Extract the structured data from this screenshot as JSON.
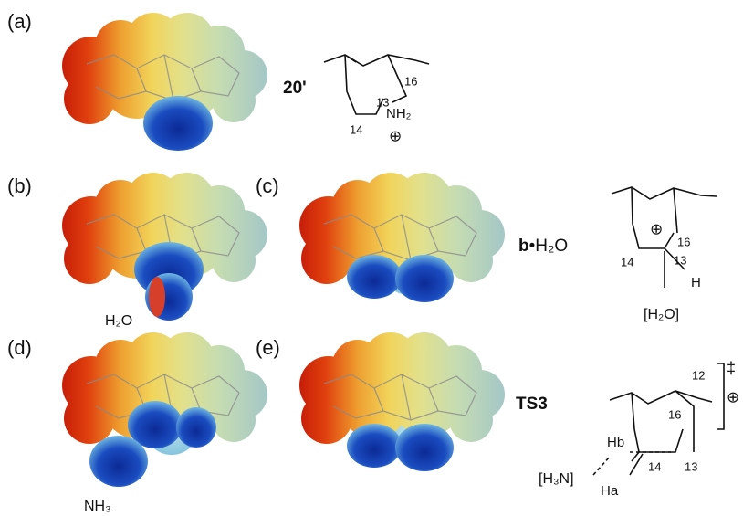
{
  "panels": [
    {
      "label": "(a)"
    },
    {
      "label": "(b)",
      "caption": "H₂O"
    },
    {
      "label": "(c)"
    },
    {
      "label": "(d)",
      "caption": "NH₃"
    },
    {
      "label": "(e)"
    }
  ],
  "structures": [
    {
      "name": "20'",
      "atoms": [
        "16",
        "13",
        "NH₂",
        "14",
        "⊕"
      ]
    },
    {
      "name": "b",
      "name_suffix": "•H₂O",
      "atoms": [
        "⊕",
        "16",
        "14",
        "13",
        "H",
        "[H₂O]"
      ]
    },
    {
      "name": "TS3",
      "atoms": [
        "12",
        "16",
        "Hb",
        "14",
        "13",
        "Ha",
        "[H₃N]",
        "‡",
        "⊕"
      ]
    }
  ]
}
